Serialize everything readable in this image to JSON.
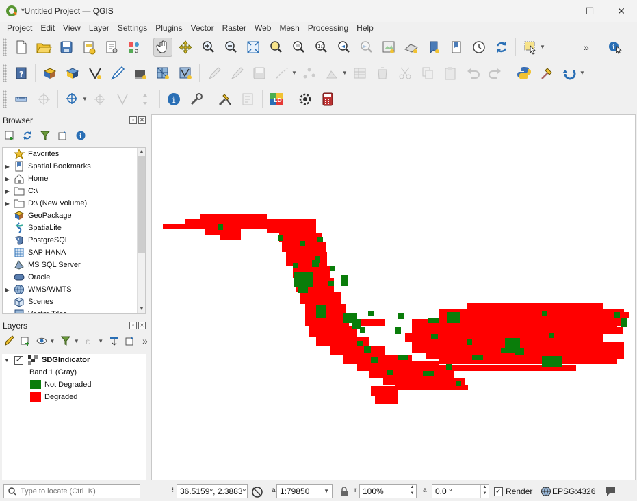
{
  "window": {
    "title": "*Untitled Project — QGIS",
    "minimize": "—",
    "maximize": "☐",
    "close": "✕"
  },
  "menu": [
    "Project",
    "Edit",
    "View",
    "Layer",
    "Settings",
    "Plugins",
    "Vector",
    "Raster",
    "Web",
    "Mesh",
    "Processing",
    "Help"
  ],
  "toolbar_overflow": "»",
  "browser": {
    "title": "Browser",
    "items": [
      {
        "label": "Favorites",
        "icon": "star-icon",
        "expandable": false
      },
      {
        "label": "Spatial Bookmarks",
        "icon": "bookmark-icon",
        "expandable": true
      },
      {
        "label": "Home",
        "icon": "home-icon",
        "expandable": true
      },
      {
        "label": "C:\\",
        "icon": "drive-icon",
        "expandable": true
      },
      {
        "label": "D:\\ (New Volume)",
        "icon": "drive-icon",
        "expandable": true
      },
      {
        "label": "GeoPackage",
        "icon": "geopackage-icon",
        "expandable": false
      },
      {
        "label": "SpatiaLite",
        "icon": "spatialite-icon",
        "expandable": false
      },
      {
        "label": "PostgreSQL",
        "icon": "postgresql-icon",
        "expandable": false
      },
      {
        "label": "SAP HANA",
        "icon": "sap-hana-icon",
        "expandable": false
      },
      {
        "label": "MS SQL Server",
        "icon": "mssql-icon",
        "expandable": false
      },
      {
        "label": "Oracle",
        "icon": "oracle-icon",
        "expandable": false
      },
      {
        "label": "WMS/WMTS",
        "icon": "globe-icon",
        "expandable": true
      },
      {
        "label": "Scenes",
        "icon": "scenes-icon",
        "expandable": false
      },
      {
        "label": "Vector Tiles",
        "icon": "vector-tiles-icon",
        "expandable": false
      }
    ]
  },
  "layers": {
    "title": "Layers",
    "layer_name": "SDGIndicator",
    "band": "Band 1 (Gray)",
    "legend": [
      {
        "label": "Not Degraded",
        "color": "#0a7d0a"
      },
      {
        "label": "Degraded",
        "color": "#ff0000"
      }
    ]
  },
  "status": {
    "locator_placeholder": "Type to locate (Ctrl+K)",
    "coordinate_label": "⁝",
    "coordinate": "36.5159°, 2.3883°",
    "scale_label": "a",
    "scale": "1:79850",
    "magnifier_label": "r",
    "magnifier": "100%",
    "rotation_label": "a",
    "rotation": "0.0 °",
    "render_label": "Render",
    "render_checked": true,
    "crs": "EPSG:4326"
  },
  "map": {
    "degraded_color": "#ff0000",
    "not_degraded_color": "#0a7d0a"
  }
}
